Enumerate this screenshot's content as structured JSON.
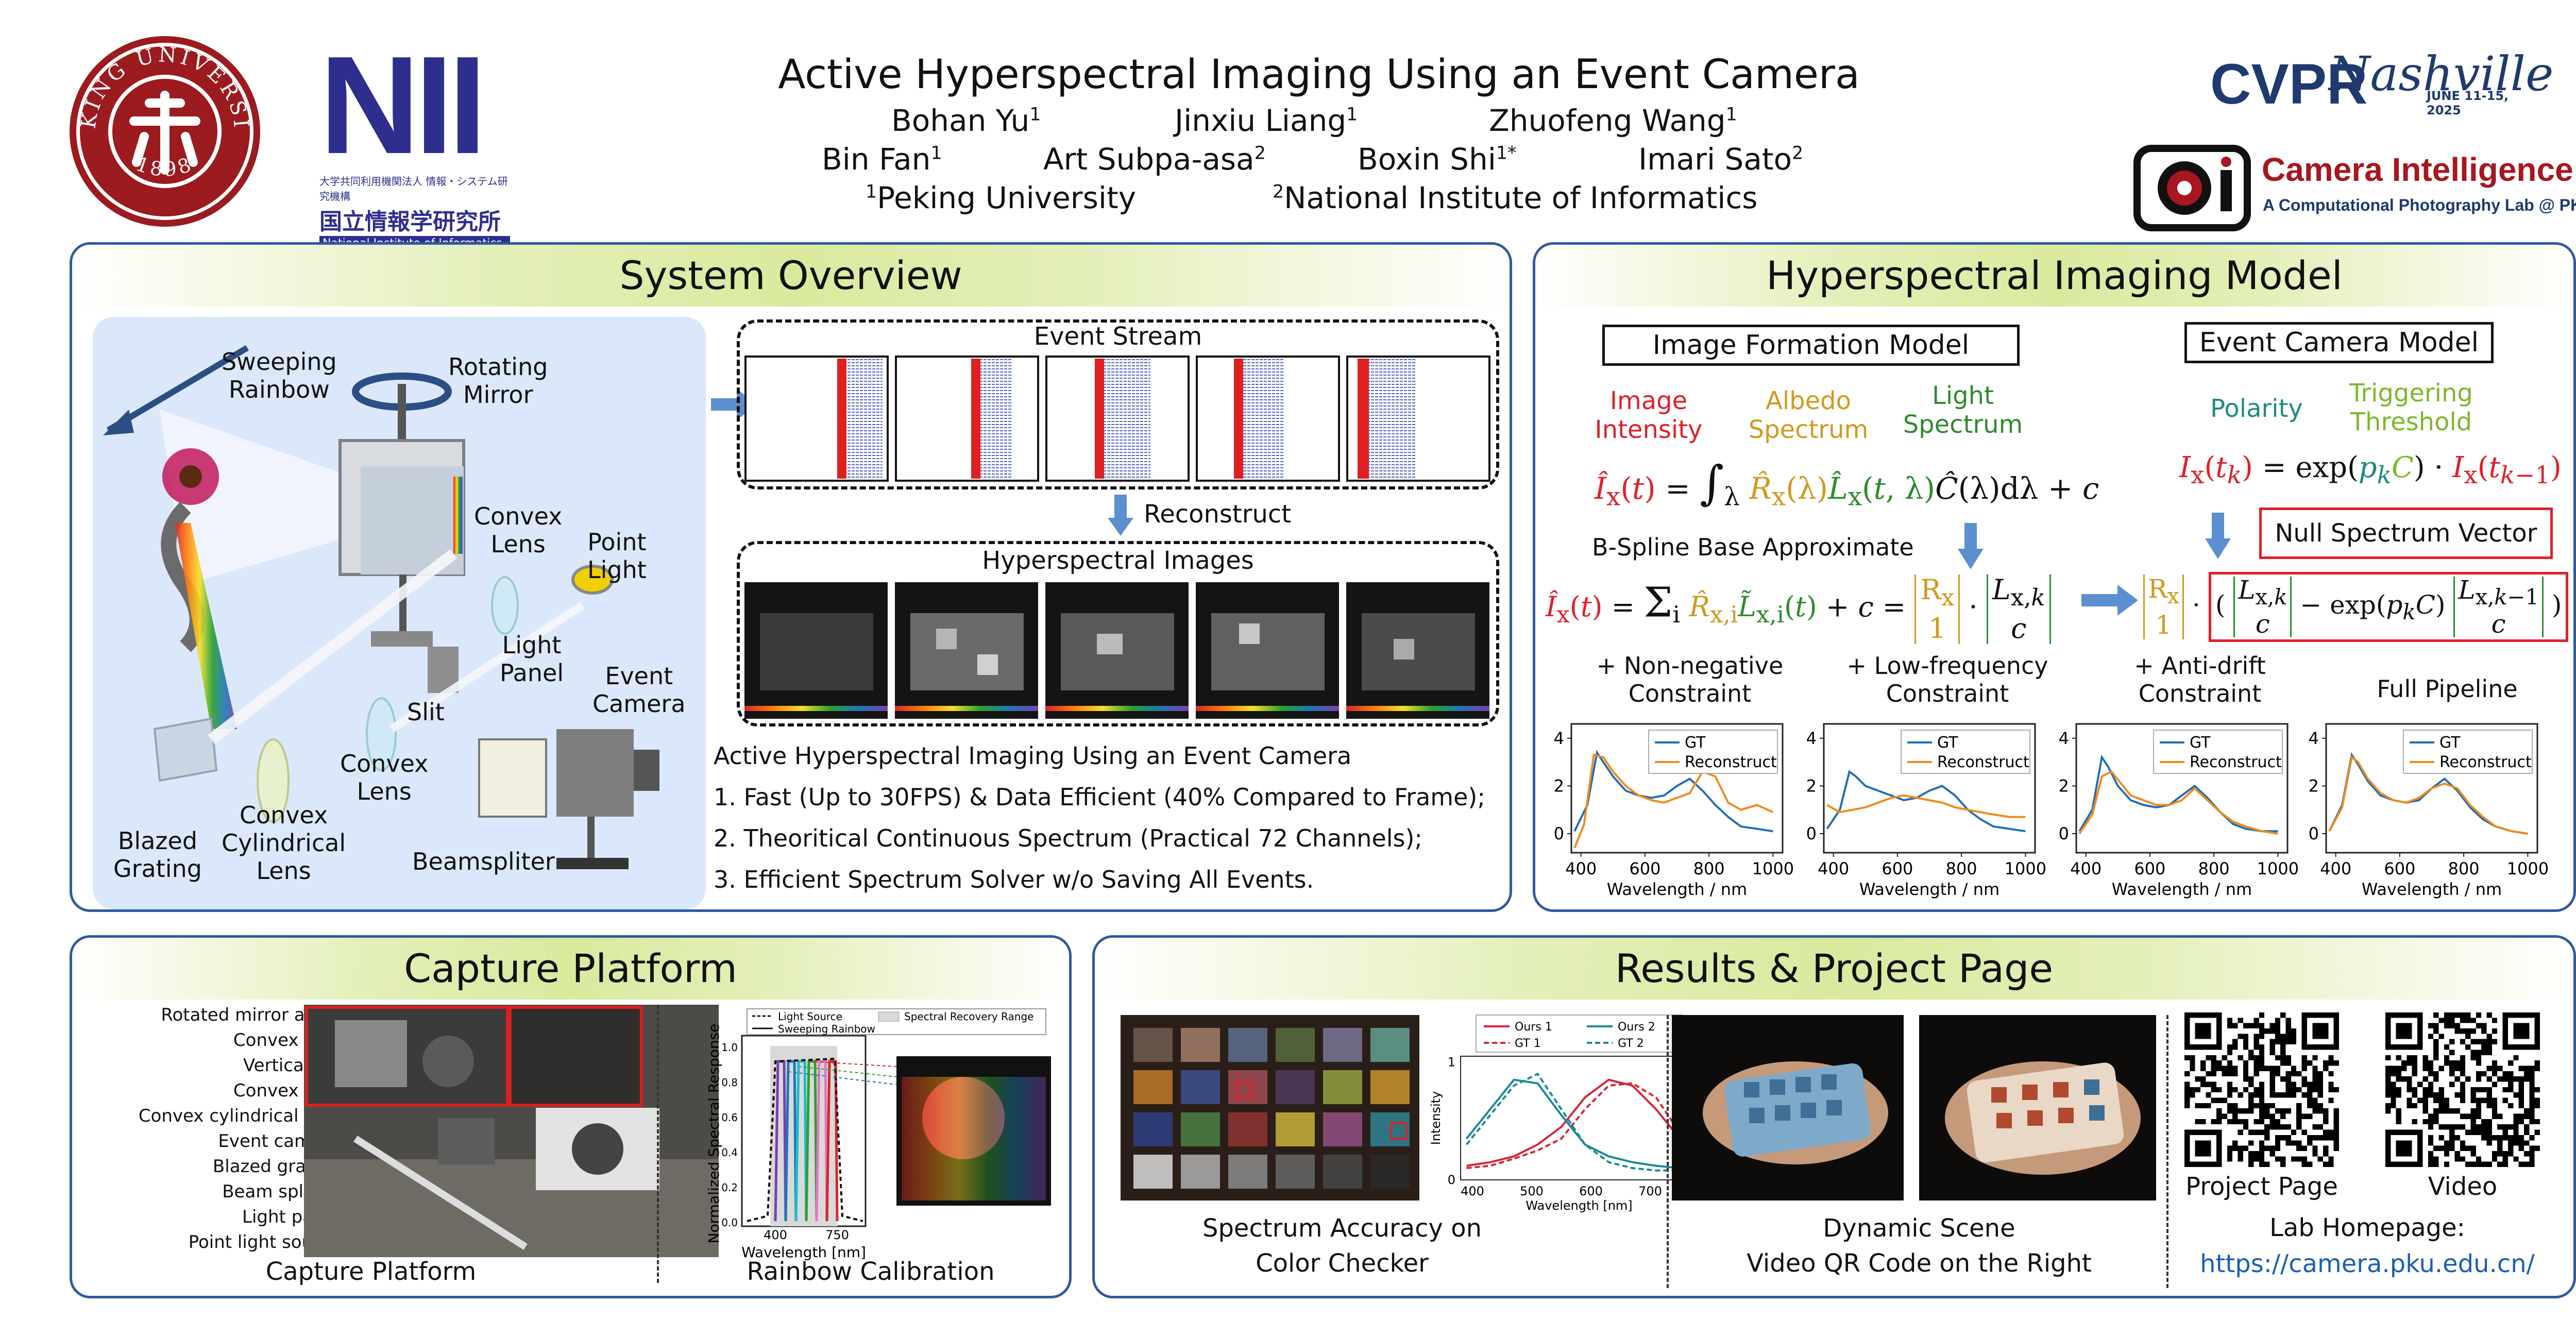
{
  "header": {
    "title": "Active Hyperspectral Imaging Using an Event Camera",
    "authors_row1": [
      {
        "name": "Bohan Yu",
        "aff": "1"
      },
      {
        "name": "Jinxiu Liang",
        "aff": "1"
      },
      {
        "name": "Zhuofeng Wang",
        "aff": "1"
      }
    ],
    "authors_row2": [
      {
        "name": "Bin Fan",
        "aff": "1"
      },
      {
        "name": "Art Subpa-asa",
        "aff": "2"
      },
      {
        "name": "Boxin Shi",
        "aff": "1*"
      },
      {
        "name": "Imari Sato",
        "aff": "2"
      }
    ],
    "affiliations": [
      {
        "num": "1",
        "name": "Peking University"
      },
      {
        "num": "2",
        "name": "National Institute of Informatics"
      }
    ],
    "pku_logo_text": "PEKING UNIVERSITY",
    "pku_logo_year": "1898",
    "nii_logo": "NII",
    "nii_sub_jp": "大学共同利用機関法人 情報・システム研究機構",
    "nii_sub_jp2": "国立情報学研究所",
    "nii_sub_en": "National Institute of Informatics",
    "cvpr_text": "CVPR",
    "cvpr_city": "Nashville",
    "cvpr_dates": "JUNE 11-15, 2025",
    "lab_name": "Camera Intelligence",
    "lab_sub": "A Computational Photography Lab @ PKU"
  },
  "system_overview": {
    "title": "System Overview",
    "optics_labels": {
      "sweeping": "Sweeping\nRainbow",
      "rotating": "Rotating\nMirror",
      "convex1": "Convex\nLens",
      "point_light": "Point\nLight",
      "light_panel": "Light\nPanel",
      "event_camera": "Event\nCamera",
      "slit": "Slit",
      "convex2": "Convex\nLens",
      "blazed": "Blazed\nGrating",
      "cylindrical": "Convex\nCylindrical\nLens",
      "beamsplitter": "Beamspliter"
    },
    "event_stream_label": "Event Stream",
    "reconstruct_label": "Reconstruct",
    "hyperspectral_label": "Hyperspectral Images",
    "description_title": "Active Hyperspectral Imaging Using an Event Camera",
    "points": [
      "1. Fast (Up to 30FPS) & Data Efficient (40% Compared to Frame);",
      "2. Theoritical Continuous Spectrum (Practical 72 Channels);",
      "3. Efficient Spectrum Solver w/o Saving All Events."
    ]
  },
  "model": {
    "title": "Hyperspectral Imaging Model",
    "image_formation_label": "Image Formation Model",
    "event_camera_label": "Event Camera Model",
    "term_labels": {
      "image_intensity": "Image\nIntensity",
      "albedo": "Albedo\nSpectrum",
      "light": "Light\nSpectrum",
      "polarity": "Polarity",
      "threshold": "Triggering\nThreshold"
    },
    "bspline_label": "B-Spline Base Approximate",
    "null_vector_label": "Null Spectrum Vector",
    "plots": [
      {
        "title": "+ Non-negative\nConstraint"
      },
      {
        "title": "+ Low-frequency\nConstraint"
      },
      {
        "title": "+ Anti-drift\nConstraint"
      },
      {
        "title": "Full Pipeline"
      }
    ],
    "colors": {
      "red": "#e0202a",
      "orange": "#d19a1f",
      "green": "#2e8b2e",
      "teal": "#1f8a80",
      "lime": "#7db82c",
      "blue": "#3b7dd8"
    }
  },
  "chart_data": [
    {
      "type": "line",
      "title": "+ Non-negative Constraint",
      "xlabel": "Wavelength / nm",
      "ylabel": "",
      "xlim": [
        370,
        1030
      ],
      "ylim": [
        -0.8,
        4.6
      ],
      "xticks": [
        400,
        600,
        800,
        1000
      ],
      "yticks": [
        0,
        2,
        4
      ],
      "series": [
        {
          "name": "GT",
          "x": [
            380,
            420,
            450,
            470,
            500,
            540,
            580,
            620,
            660,
            700,
            740,
            780,
            820,
            860,
            900,
            950,
            1000
          ],
          "y": [
            0.1,
            1.2,
            3.4,
            3.0,
            2.4,
            1.8,
            1.6,
            1.5,
            1.6,
            2.0,
            2.3,
            1.8,
            1.2,
            0.7,
            0.3,
            0.2,
            0.1
          ]
        },
        {
          "name": "Reconstruct",
          "x": [
            380,
            410,
            440,
            470,
            500,
            540,
            580,
            620,
            660,
            700,
            740,
            780,
            820,
            860,
            900,
            950,
            1000
          ],
          "y": [
            -0.6,
            0.4,
            3.3,
            3.2,
            2.6,
            2.0,
            1.6,
            1.4,
            1.3,
            1.5,
            1.7,
            2.6,
            2.4,
            1.3,
            1.0,
            1.2,
            0.9
          ]
        }
      ]
    },
    {
      "type": "line",
      "title": "+ Low-frequency Constraint",
      "xlabel": "Wavelength / nm",
      "ylabel": "",
      "xlim": [
        370,
        1030
      ],
      "ylim": [
        -0.8,
        4.6
      ],
      "xticks": [
        400,
        600,
        800,
        1000
      ],
      "yticks": [
        0,
        2,
        4
      ],
      "series": [
        {
          "name": "GT",
          "x": [
            380,
            420,
            450,
            470,
            500,
            540,
            580,
            620,
            660,
            700,
            740,
            780,
            820,
            860,
            900,
            950,
            1000
          ],
          "y": [
            0.2,
            1.0,
            2.6,
            2.4,
            2.0,
            1.8,
            1.6,
            1.4,
            1.5,
            1.8,
            2.0,
            1.6,
            1.0,
            0.6,
            0.3,
            0.2,
            0.1
          ]
        },
        {
          "name": "Reconstruct",
          "x": [
            380,
            420,
            460,
            500,
            540,
            580,
            620,
            660,
            700,
            740,
            780,
            820,
            860,
            900,
            950,
            1000
          ],
          "y": [
            1.2,
            0.9,
            1.0,
            1.1,
            1.3,
            1.5,
            1.6,
            1.5,
            1.4,
            1.3,
            1.1,
            1.0,
            0.9,
            0.8,
            0.7,
            0.7
          ]
        }
      ]
    },
    {
      "type": "line",
      "title": "+ Anti-drift Constraint",
      "xlabel": "Wavelength / nm",
      "ylabel": "",
      "xlim": [
        370,
        1030
      ],
      "ylim": [
        -0.8,
        4.6
      ],
      "xticks": [
        400,
        600,
        800,
        1000
      ],
      "yticks": [
        0,
        2,
        4
      ],
      "series": [
        {
          "name": "GT",
          "x": [
            380,
            420,
            450,
            470,
            500,
            540,
            580,
            620,
            660,
            700,
            740,
            780,
            820,
            860,
            900,
            950,
            1000
          ],
          "y": [
            0.1,
            1.0,
            3.2,
            2.8,
            2.0,
            1.4,
            1.2,
            1.1,
            1.2,
            1.6,
            2.0,
            1.5,
            0.9,
            0.4,
            0.2,
            0.1,
            0.1
          ]
        },
        {
          "name": "Reconstruct",
          "x": [
            380,
            420,
            450,
            480,
            510,
            540,
            580,
            620,
            660,
            700,
            740,
            780,
            820,
            860,
            900,
            950,
            1000
          ],
          "y": [
            0.0,
            0.8,
            2.4,
            2.6,
            2.1,
            1.6,
            1.4,
            1.2,
            1.2,
            1.4,
            1.9,
            1.4,
            0.9,
            0.5,
            0.3,
            0.1,
            0.0
          ]
        }
      ]
    },
    {
      "type": "line",
      "title": "Full Pipeline",
      "xlabel": "Wavelength / nm",
      "ylabel": "",
      "xlim": [
        370,
        1030
      ],
      "ylim": [
        -0.8,
        4.6
      ],
      "xticks": [
        400,
        600,
        800,
        1000
      ],
      "yticks": [
        0,
        2,
        4
      ],
      "series": [
        {
          "name": "GT",
          "x": [
            380,
            420,
            450,
            470,
            500,
            540,
            580,
            620,
            660,
            700,
            740,
            780,
            820,
            860,
            900,
            950,
            1000
          ],
          "y": [
            0.1,
            1.2,
            3.3,
            2.9,
            2.2,
            1.6,
            1.4,
            1.3,
            1.4,
            1.9,
            2.3,
            1.8,
            1.1,
            0.6,
            0.3,
            0.1,
            0.0
          ]
        },
        {
          "name": "Reconstruct",
          "x": [
            380,
            420,
            450,
            470,
            500,
            540,
            580,
            620,
            660,
            700,
            740,
            780,
            820,
            860,
            900,
            950,
            1000
          ],
          "y": [
            0.1,
            1.1,
            3.2,
            3.0,
            2.3,
            1.7,
            1.4,
            1.3,
            1.5,
            1.9,
            2.1,
            1.9,
            1.2,
            0.7,
            0.3,
            0.1,
            0.0
          ]
        }
      ]
    },
    {
      "type": "line",
      "title": "Spectrum Accuracy",
      "xlabel": "Wavelength [nm]",
      "ylabel": "Intensity",
      "xlim": [
        380,
        780
      ],
      "ylim": [
        0,
        1.05
      ],
      "xticks": [
        400,
        500,
        600,
        700
      ],
      "yticks": [
        0,
        1
      ],
      "series": [
        {
          "name": "Ours 1",
          "x": [
            390,
            430,
            470,
            510,
            550,
            590,
            630,
            670,
            710,
            750,
            780
          ],
          "y": [
            0.12,
            0.15,
            0.2,
            0.3,
            0.45,
            0.7,
            0.85,
            0.8,
            0.6,
            0.35,
            0.25
          ]
        },
        {
          "name": "GT 1",
          "x": [
            390,
            430,
            470,
            510,
            550,
            590,
            630,
            670,
            710,
            750,
            780
          ],
          "y": [
            0.1,
            0.12,
            0.18,
            0.25,
            0.35,
            0.6,
            0.8,
            0.82,
            0.7,
            0.4,
            0.2
          ]
        },
        {
          "name": "Ours 2",
          "x": [
            390,
            430,
            470,
            510,
            550,
            590,
            630,
            670,
            710,
            750,
            780
          ],
          "y": [
            0.35,
            0.6,
            0.85,
            0.82,
            0.55,
            0.3,
            0.2,
            0.15,
            0.12,
            0.1,
            0.1
          ]
        },
        {
          "name": "GT 2",
          "x": [
            390,
            430,
            470,
            510,
            550,
            590,
            630,
            670,
            710,
            750,
            780
          ],
          "y": [
            0.3,
            0.55,
            0.8,
            0.9,
            0.6,
            0.3,
            0.15,
            0.1,
            0.08,
            0.08,
            0.08
          ]
        }
      ]
    }
  ],
  "capture": {
    "title": "Capture Platform",
    "callouts": [
      "Rotated mirror array",
      "Convex lens",
      "Vertical slit",
      "Convex lens",
      "Convex cylindrical lens",
      "Event camera",
      "Blazed grating",
      "Beam splitter",
      "Light panel",
      "Point light source"
    ],
    "caption_left": "Capture Platform",
    "caption_right": "Rainbow Calibration",
    "calib_legend": [
      "Light Source",
      "Sweeping Rainbow",
      "Spectral Recovery Range"
    ],
    "calib_ylabel": "Normalized Spectral Response",
    "calib_xlabel": "Wavelength [nm]",
    "calib_xticks": [
      "400",
      "750"
    ],
    "calib_yticks": [
      "0.0",
      "0.2",
      "0.4",
      "0.6",
      "0.8",
      "1.0"
    ]
  },
  "results": {
    "title": "Results & Project Page",
    "caption_checker": "Spectrum Accuracy on\nColor Checker",
    "caption_dynamic": "Dynamic Scene\nVideo QR Code on the Right",
    "qr_project": "Project Page",
    "qr_video": "Video",
    "lab_homepage_label": "Lab Homepage:",
    "lab_homepage_url": "https://camera.pku.edu.cn/"
  }
}
